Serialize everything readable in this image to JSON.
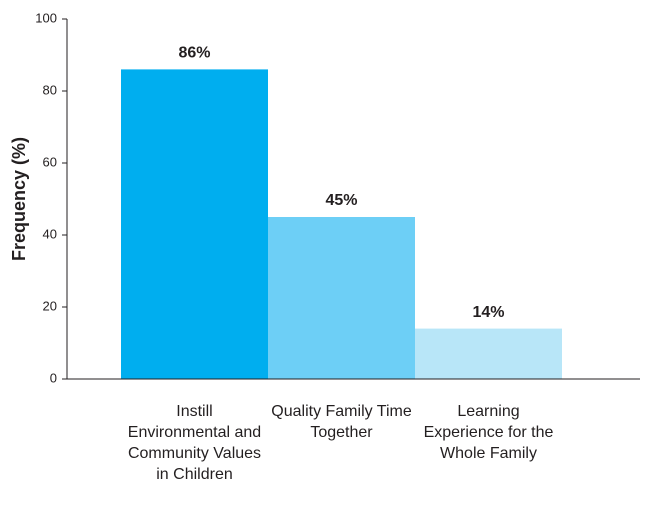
{
  "chart_data": {
    "type": "bar",
    "y_label": "Frequency (%)",
    "categories": [
      "Instill Environmental and Community Values in Children",
      "Quality Family Time Together",
      "Learning Experience for the Whole Family"
    ],
    "values": [
      86,
      45,
      14
    ],
    "value_labels": [
      "86%",
      "45%",
      "14%"
    ],
    "colors": [
      "#00aeef",
      "#6dcff6",
      "#b8e6f8"
    ],
    "ylim": [
      0,
      100
    ],
    "yticks": [
      0,
      20,
      40,
      60,
      80,
      100
    ],
    "grid": false
  }
}
